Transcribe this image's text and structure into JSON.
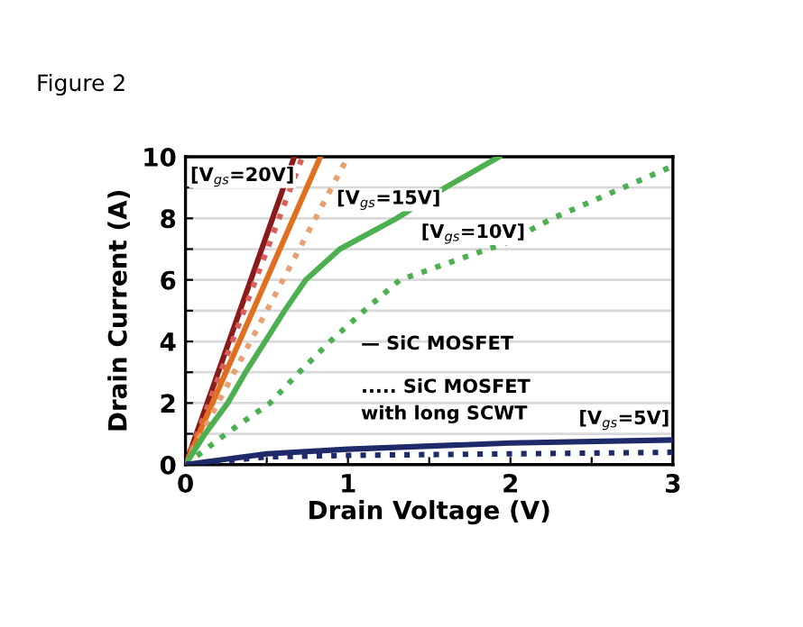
{
  "chart_data": {
    "type": "line",
    "title": "Figure 2",
    "xlabel": "Drain Voltage (V)",
    "ylabel": "Drain Current (A)",
    "xlim": [
      0,
      3
    ],
    "ylim": [
      0,
      10
    ],
    "xticks": [
      0,
      {
        "value": 0.5,
        "label": null
      },
      1,
      {
        "value": 1.5,
        "label": null
      },
      2,
      {
        "value": 2.5,
        "label": null
      },
      3
    ],
    "yticks": [
      0,
      {
        "value": 1,
        "label": null
      },
      2,
      {
        "value": 3,
        "label": null
      },
      4,
      {
        "value": 5,
        "label": null
      },
      6,
      {
        "value": 7,
        "label": null
      },
      8,
      {
        "value": 9,
        "label": null
      },
      10
    ],
    "grid": "y",
    "marker": "none",
    "series": [
      {
        "color": "#8b1a1a",
        "line_style": "solid",
        "x": [
          0,
          0.67
        ],
        "values": [
          0,
          10
        ]
      },
      {
        "color": "#d9605a",
        "line_style": "dotted",
        "x": [
          0,
          0.72
        ],
        "values": [
          0,
          10
        ]
      },
      {
        "color": "#e07020",
        "line_style": "solid",
        "x": [
          0,
          0.83
        ],
        "values": [
          0,
          10
        ]
      },
      {
        "color": "#e8a070",
        "line_style": "dotted",
        "x": [
          0,
          1.0
        ],
        "values": [
          0,
          10
        ]
      },
      {
        "color": "#4caf50",
        "line_style": "solid",
        "x": [
          0,
          0.12,
          0.26,
          0.37,
          0.49,
          0.61,
          0.74,
          0.95,
          1.3,
          1.6,
          1.93
        ],
        "values": [
          0,
          1,
          2,
          3,
          4,
          5,
          6,
          7,
          8,
          9,
          10
        ]
      },
      {
        "color": "#4caf50",
        "line_style": "dotted",
        "x": [
          0,
          0.25,
          0.52,
          0.7,
          0.89,
          1.1,
          1.32,
          1.97,
          2.26,
          3.0
        ],
        "values": [
          0,
          1,
          2,
          3,
          4,
          5,
          6,
          7.2,
          8,
          9.7
        ]
      },
      {
        "color": "#1f2a6b",
        "line_style": "solid",
        "x": [
          0,
          0.5,
          1,
          2,
          3
        ],
        "values": [
          0,
          0.35,
          0.5,
          0.7,
          0.8
        ]
      },
      {
        "color": "#1f2a6b",
        "line_style": "dotted",
        "x": [
          0,
          0.5,
          1,
          2,
          3
        ],
        "values": [
          0,
          0.25,
          0.3,
          0.35,
          0.4
        ]
      }
    ],
    "annotations": [
      "[V$_{gs}$=20V]",
      "[V$_{gs}$=15V]",
      "[V$_{gs}$=10V]",
      "[V$_{gs}$=5V]",
      "— SiC MOSFET",
      "..... SiC MOSFET\nwith long SCWT"
    ]
  }
}
